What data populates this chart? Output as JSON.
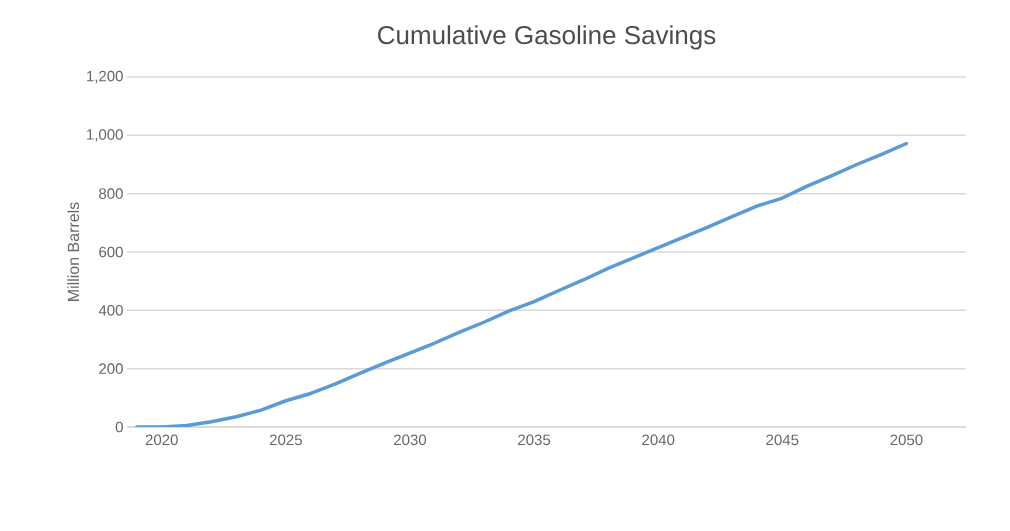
{
  "chart_data": {
    "type": "line",
    "title": "Cumulative Gasoline Savings",
    "ylabel": "Million Barrels",
    "x": [
      2019,
      2020,
      2021,
      2022,
      2023,
      2024,
      2025,
      2026,
      2027,
      2028,
      2029,
      2030,
      2031,
      2032,
      2033,
      2034,
      2035,
      2036,
      2037,
      2038,
      2039,
      2040,
      2041,
      2042,
      2043,
      2044,
      2045,
      2046,
      2047,
      2048,
      2049,
      2050
    ],
    "series": [
      {
        "color": "#5b9bd5",
        "values": [
          0,
          0,
          5,
          18,
          35,
          58,
          90,
          115,
          148,
          185,
          220,
          254,
          288,
          325,
          360,
          398,
          430,
          468,
          505,
          545,
          580,
          615,
          650,
          685,
          722,
          758,
          785,
          826,
          862,
          900,
          935,
          972
        ]
      }
    ],
    "xlim": [
      2018.6,
      2052.4
    ],
    "xticks": [
      2020,
      2025,
      2030,
      2035,
      2040,
      2045,
      2050
    ],
    "ylim": [
      0,
      1200
    ],
    "yticks": [
      0,
      {
        "value": 200,
        "label": "200"
      },
      {
        "value": 400,
        "label": "400"
      },
      {
        "value": 600,
        "label": "600"
      },
      {
        "value": 800,
        "label": "800"
      },
      {
        "value": 1000,
        "label": "1,000"
      },
      {
        "value": 1200,
        "label": "1,200"
      }
    ],
    "grid": "y",
    "marker": "none",
    "line_style": "solid"
  }
}
